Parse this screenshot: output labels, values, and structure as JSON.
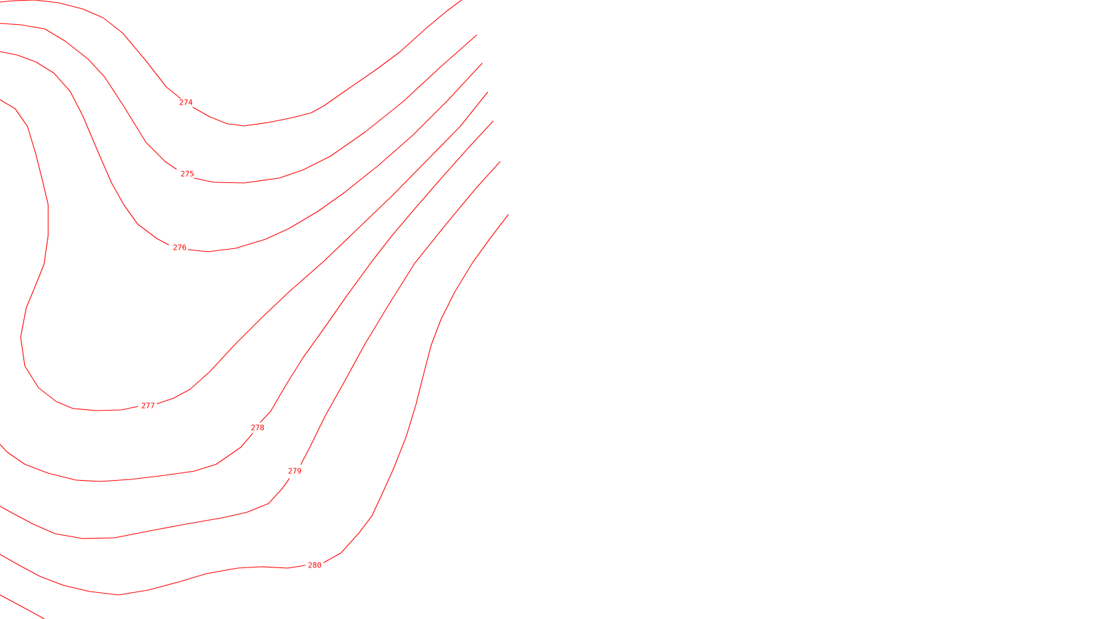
{
  "colors": {
    "background": "#ffffff",
    "contour_line": "#ff0000",
    "contour_label": "#ff0000"
  },
  "contours": [
    {
      "label": "274"
    },
    {
      "label": "275"
    },
    {
      "label": "276"
    },
    {
      "label": "277"
    },
    {
      "label": "278"
    },
    {
      "label": "279"
    },
    {
      "label": "280"
    },
    {
      "label": ""
    }
  ]
}
